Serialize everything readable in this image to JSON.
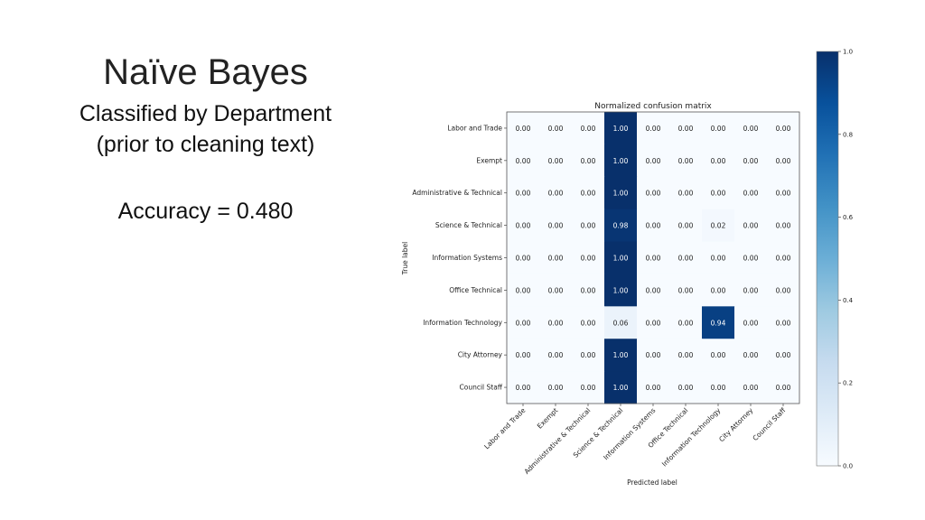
{
  "slide": {
    "title": "Naïve Bayes",
    "subtitle_line1": "Classified by Department",
    "subtitle_line2": "(prior to cleaning text)",
    "accuracy": "Accuracy = 0.480"
  },
  "chart_data": {
    "type": "heatmap",
    "title": "Normalized confusion matrix",
    "xlabel": "Predicted label",
    "ylabel": "True label",
    "categories": [
      "Labor and Trade",
      "Exempt",
      "Administrative & Technical",
      "Science & Technical",
      "Information Systems",
      "Office Technical",
      "Information Technology",
      "City Attorney",
      "Council Staff"
    ],
    "values": [
      [
        0.0,
        0.0,
        0.0,
        1.0,
        0.0,
        0.0,
        0.0,
        0.0,
        0.0
      ],
      [
        0.0,
        0.0,
        0.0,
        1.0,
        0.0,
        0.0,
        0.0,
        0.0,
        0.0
      ],
      [
        0.0,
        0.0,
        0.0,
        1.0,
        0.0,
        0.0,
        0.0,
        0.0,
        0.0
      ],
      [
        0.0,
        0.0,
        0.0,
        0.98,
        0.0,
        0.0,
        0.02,
        0.0,
        0.0
      ],
      [
        0.0,
        0.0,
        0.0,
        1.0,
        0.0,
        0.0,
        0.0,
        0.0,
        0.0
      ],
      [
        0.0,
        0.0,
        0.0,
        1.0,
        0.0,
        0.0,
        0.0,
        0.0,
        0.0
      ],
      [
        0.0,
        0.0,
        0.0,
        0.06,
        0.0,
        0.0,
        0.94,
        0.0,
        0.0
      ],
      [
        0.0,
        0.0,
        0.0,
        1.0,
        0.0,
        0.0,
        0.0,
        0.0,
        0.0
      ],
      [
        0.0,
        0.0,
        0.0,
        1.0,
        0.0,
        0.0,
        0.0,
        0.0,
        0.0
      ]
    ],
    "colorbar": {
      "range": [
        0.0,
        1.0
      ],
      "ticks": [
        "0.0",
        "0.2",
        "0.4",
        "0.6",
        "0.8",
        "1.0"
      ],
      "colormap": "Blues",
      "low_color": "#f7fbff",
      "high_color": "#08306b"
    }
  }
}
